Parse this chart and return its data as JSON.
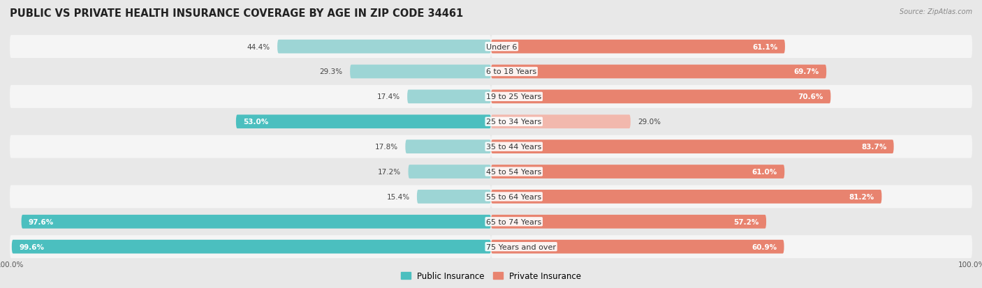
{
  "title": "PUBLIC VS PRIVATE HEALTH INSURANCE COVERAGE BY AGE IN ZIP CODE 34461",
  "source": "Source: ZipAtlas.com",
  "categories": [
    "Under 6",
    "6 to 18 Years",
    "19 to 25 Years",
    "25 to 34 Years",
    "35 to 44 Years",
    "45 to 54 Years",
    "55 to 64 Years",
    "65 to 74 Years",
    "75 Years and over"
  ],
  "public_values": [
    44.4,
    29.3,
    17.4,
    53.0,
    17.8,
    17.2,
    15.4,
    97.6,
    99.6
  ],
  "private_values": [
    61.1,
    69.7,
    70.6,
    29.0,
    83.7,
    61.0,
    81.2,
    57.2,
    60.9
  ],
  "public_color": "#4bbfbf",
  "private_color": "#e8836f",
  "public_color_light": "#9dd5d5",
  "private_color_light": "#f2b8ad",
  "bg_color": "#e8e8e8",
  "row_bg_even": "#f5f5f5",
  "row_bg_odd": "#e8e8e8",
  "bar_height": 0.55,
  "title_fontsize": 10.5,
  "label_fontsize": 8,
  "value_fontsize": 7.5,
  "legend_fontsize": 8.5,
  "axis_tick_fontsize": 7.5
}
